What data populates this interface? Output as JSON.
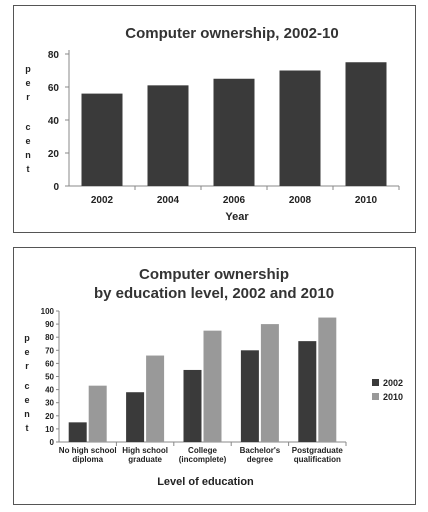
{
  "chart_data": [
    {
      "type": "bar",
      "title": "Computer ownership, 2002-10",
      "xlabel": "Year",
      "ylabel_chars": [
        "p",
        "e",
        "r",
        "c",
        "e",
        "n",
        "t"
      ],
      "categories": [
        "2002",
        "2004",
        "2006",
        "2008",
        "2010"
      ],
      "values": [
        56,
        61,
        65,
        70,
        75
      ],
      "ylim": [
        0,
        80
      ],
      "yticks": [
        0,
        20,
        40,
        60,
        80
      ],
      "bar_color": "#3a3a3a",
      "grid": false
    },
    {
      "type": "bar",
      "title_lines": [
        "Computer ownership",
        "by education level, 2002 and 2010"
      ],
      "xlabel": "Level of education",
      "ylabel_chars": [
        "p",
        "e",
        "r",
        "c",
        "e",
        "n",
        "t"
      ],
      "categories": [
        [
          "No high school",
          "diploma"
        ],
        [
          "High school",
          "graduate"
        ],
        [
          "College",
          "(incomplete)"
        ],
        [
          "Bachelor's",
          "degree"
        ],
        [
          "Postgraduate",
          "qualification"
        ]
      ],
      "series": [
        {
          "name": "2002",
          "values": [
            15,
            38,
            55,
            70,
            77
          ],
          "color": "#3a3a3a"
        },
        {
          "name": "2010",
          "values": [
            43,
            66,
            85,
            90,
            95
          ],
          "color": "#999999"
        }
      ],
      "ylim": [
        0,
        100
      ],
      "yticks": [
        0,
        10,
        20,
        30,
        40,
        50,
        60,
        70,
        80,
        90,
        100
      ],
      "legend_position": "right",
      "grid": false
    }
  ]
}
